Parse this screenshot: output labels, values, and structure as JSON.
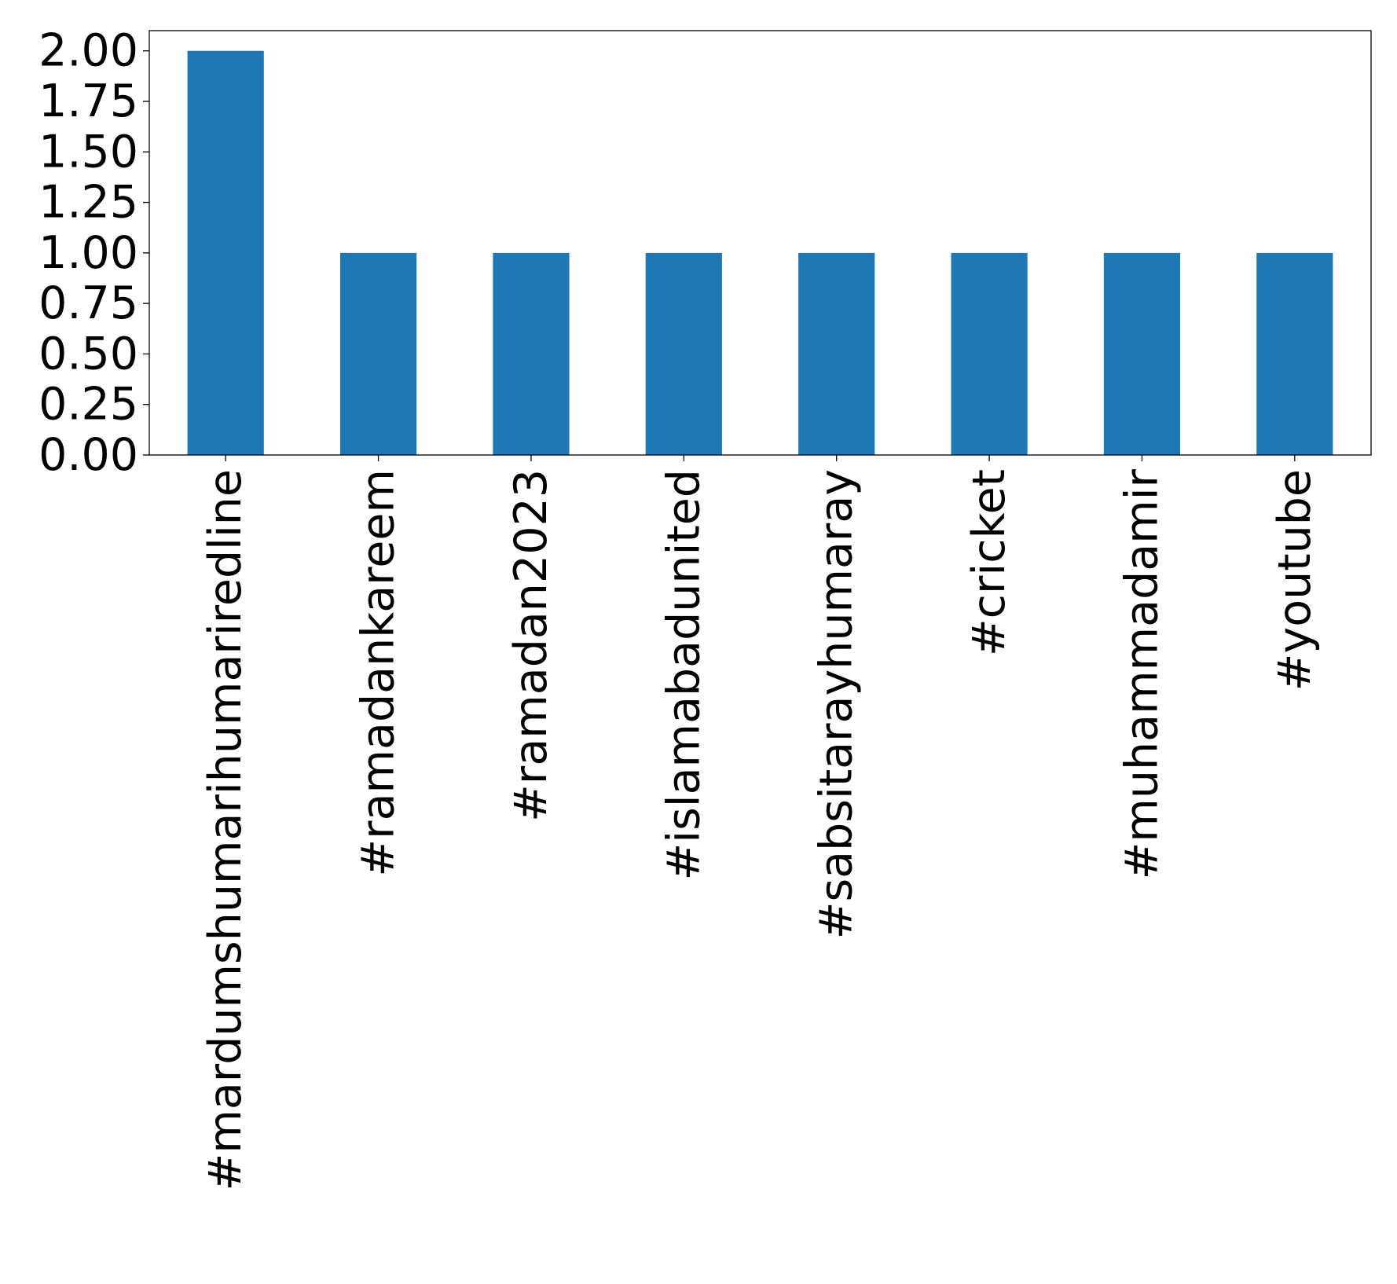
{
  "chart_data": {
    "type": "bar",
    "title": "",
    "xlabel": "",
    "ylabel": "",
    "categories": [
      "#mardumshumarihumariredline",
      "#ramadankareem",
      "#ramadan2023",
      "#islamabadunited",
      "#sabsitarayhumaray",
      "#cricket",
      "#muhammadamir",
      "#youtube"
    ],
    "values": [
      2,
      1,
      1,
      1,
      1,
      1,
      1,
      1
    ],
    "ylim": [
      0,
      2.1
    ],
    "yticks": [
      0.0,
      0.25,
      0.5,
      0.75,
      1.0,
      1.25,
      1.5,
      1.75,
      2.0
    ],
    "ytick_labels": [
      "0.00",
      "0.25",
      "0.50",
      "0.75",
      "1.00",
      "1.25",
      "1.50",
      "1.75",
      "2.00"
    ],
    "bar_color": "#1f77b4",
    "grid": false,
    "legend": false
  }
}
